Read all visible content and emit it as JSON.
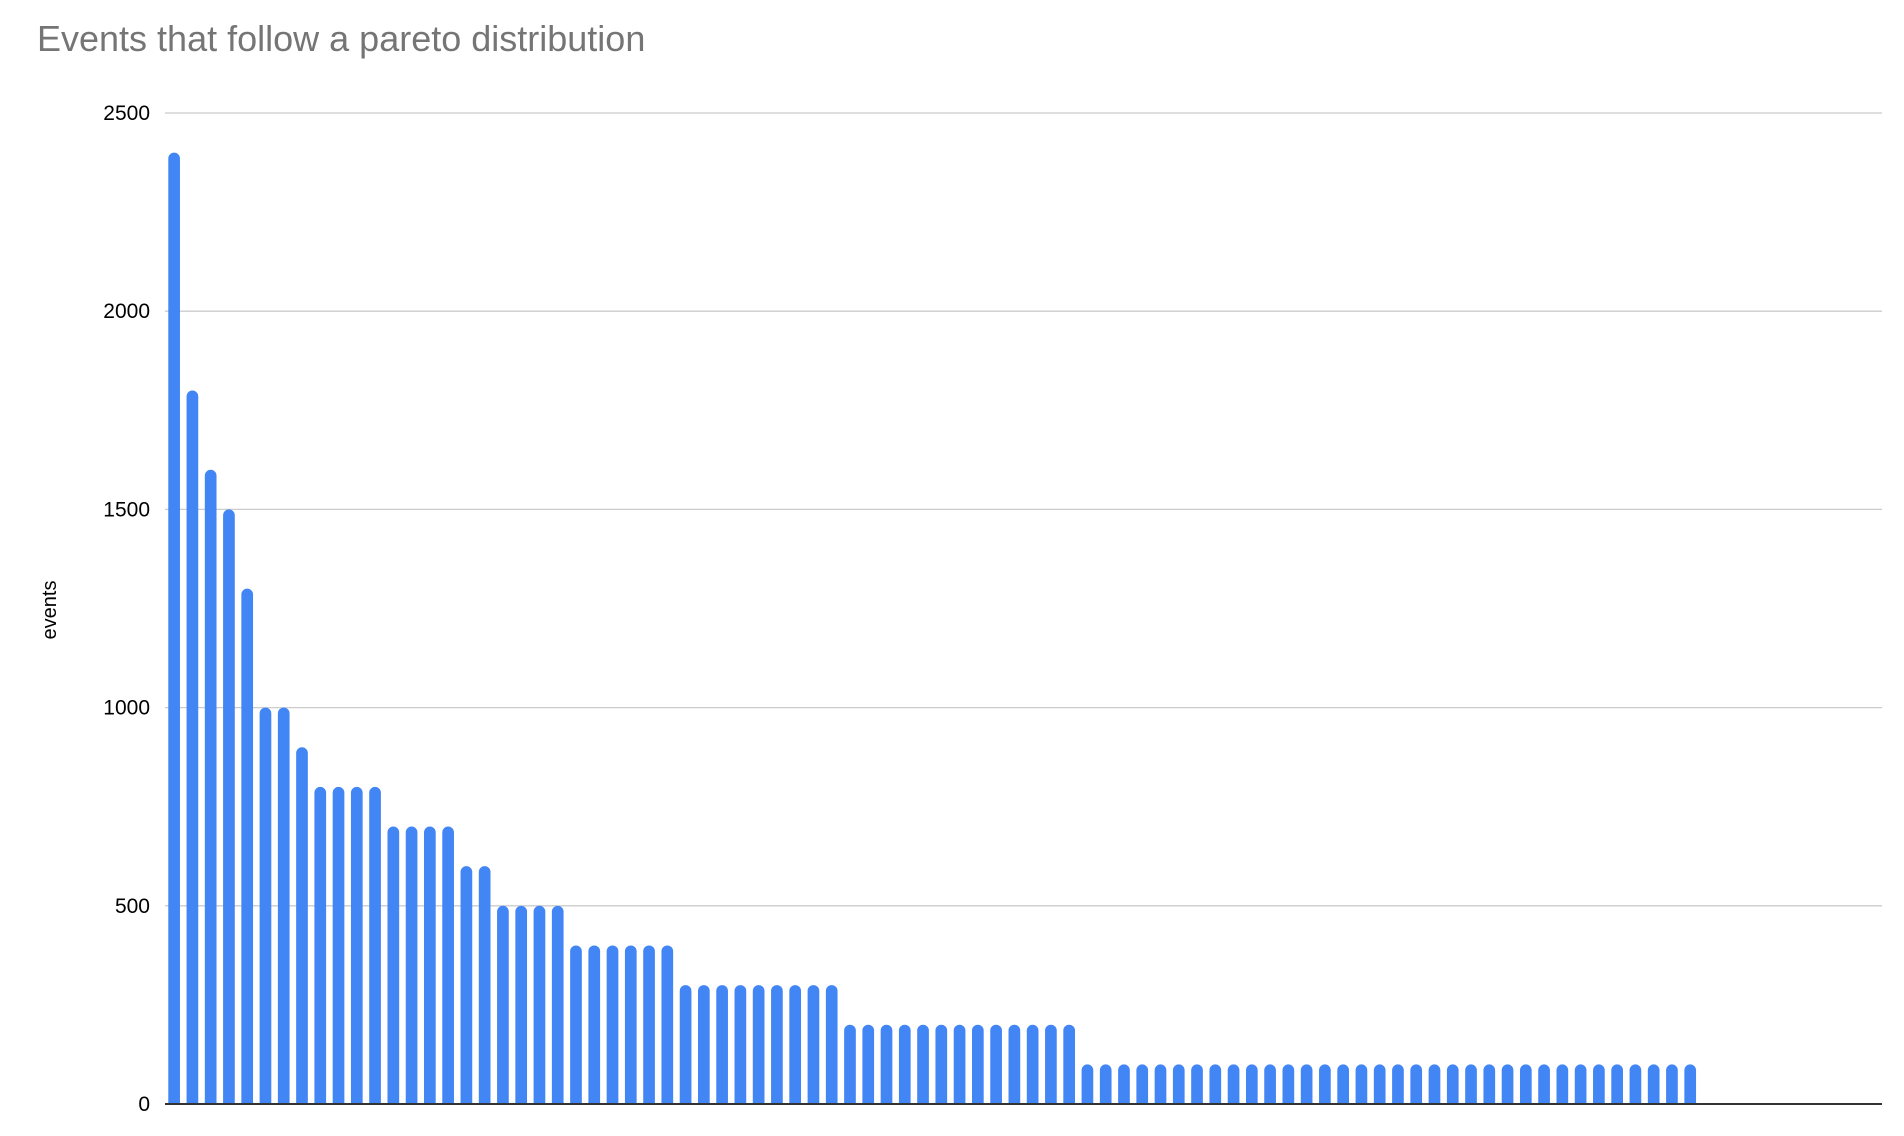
{
  "chart_data": {
    "type": "bar",
    "title": "Events that follow a pareto distribution",
    "xlabel": "",
    "ylabel": "events",
    "ylim": [
      0,
      2500
    ],
    "yticks": [
      "0",
      "500",
      "1000",
      "1500",
      "2000",
      "2500"
    ],
    "grid": true,
    "legend": "none",
    "bar_color": "#4285f4",
    "values": [
      2400,
      1800,
      1600,
      1500,
      1300,
      1000,
      1000,
      900,
      800,
      800,
      800,
      800,
      700,
      700,
      700,
      700,
      600,
      600,
      500,
      500,
      500,
      500,
      400,
      400,
      400,
      400,
      400,
      400,
      300,
      300,
      300,
      300,
      300,
      300,
      300,
      300,
      300,
      200,
      200,
      200,
      200,
      200,
      200,
      200,
      200,
      200,
      200,
      200,
      200,
      200,
      100,
      100,
      100,
      100,
      100,
      100,
      100,
      100,
      100,
      100,
      100,
      100,
      100,
      100,
      100,
      100,
      100,
      100,
      100,
      100,
      100,
      100,
      100,
      100,
      100,
      100,
      100,
      100,
      100,
      100,
      100,
      100,
      100,
      100,
      null,
      null,
      null,
      null,
      null,
      null,
      null,
      null,
      null,
      null
    ]
  }
}
